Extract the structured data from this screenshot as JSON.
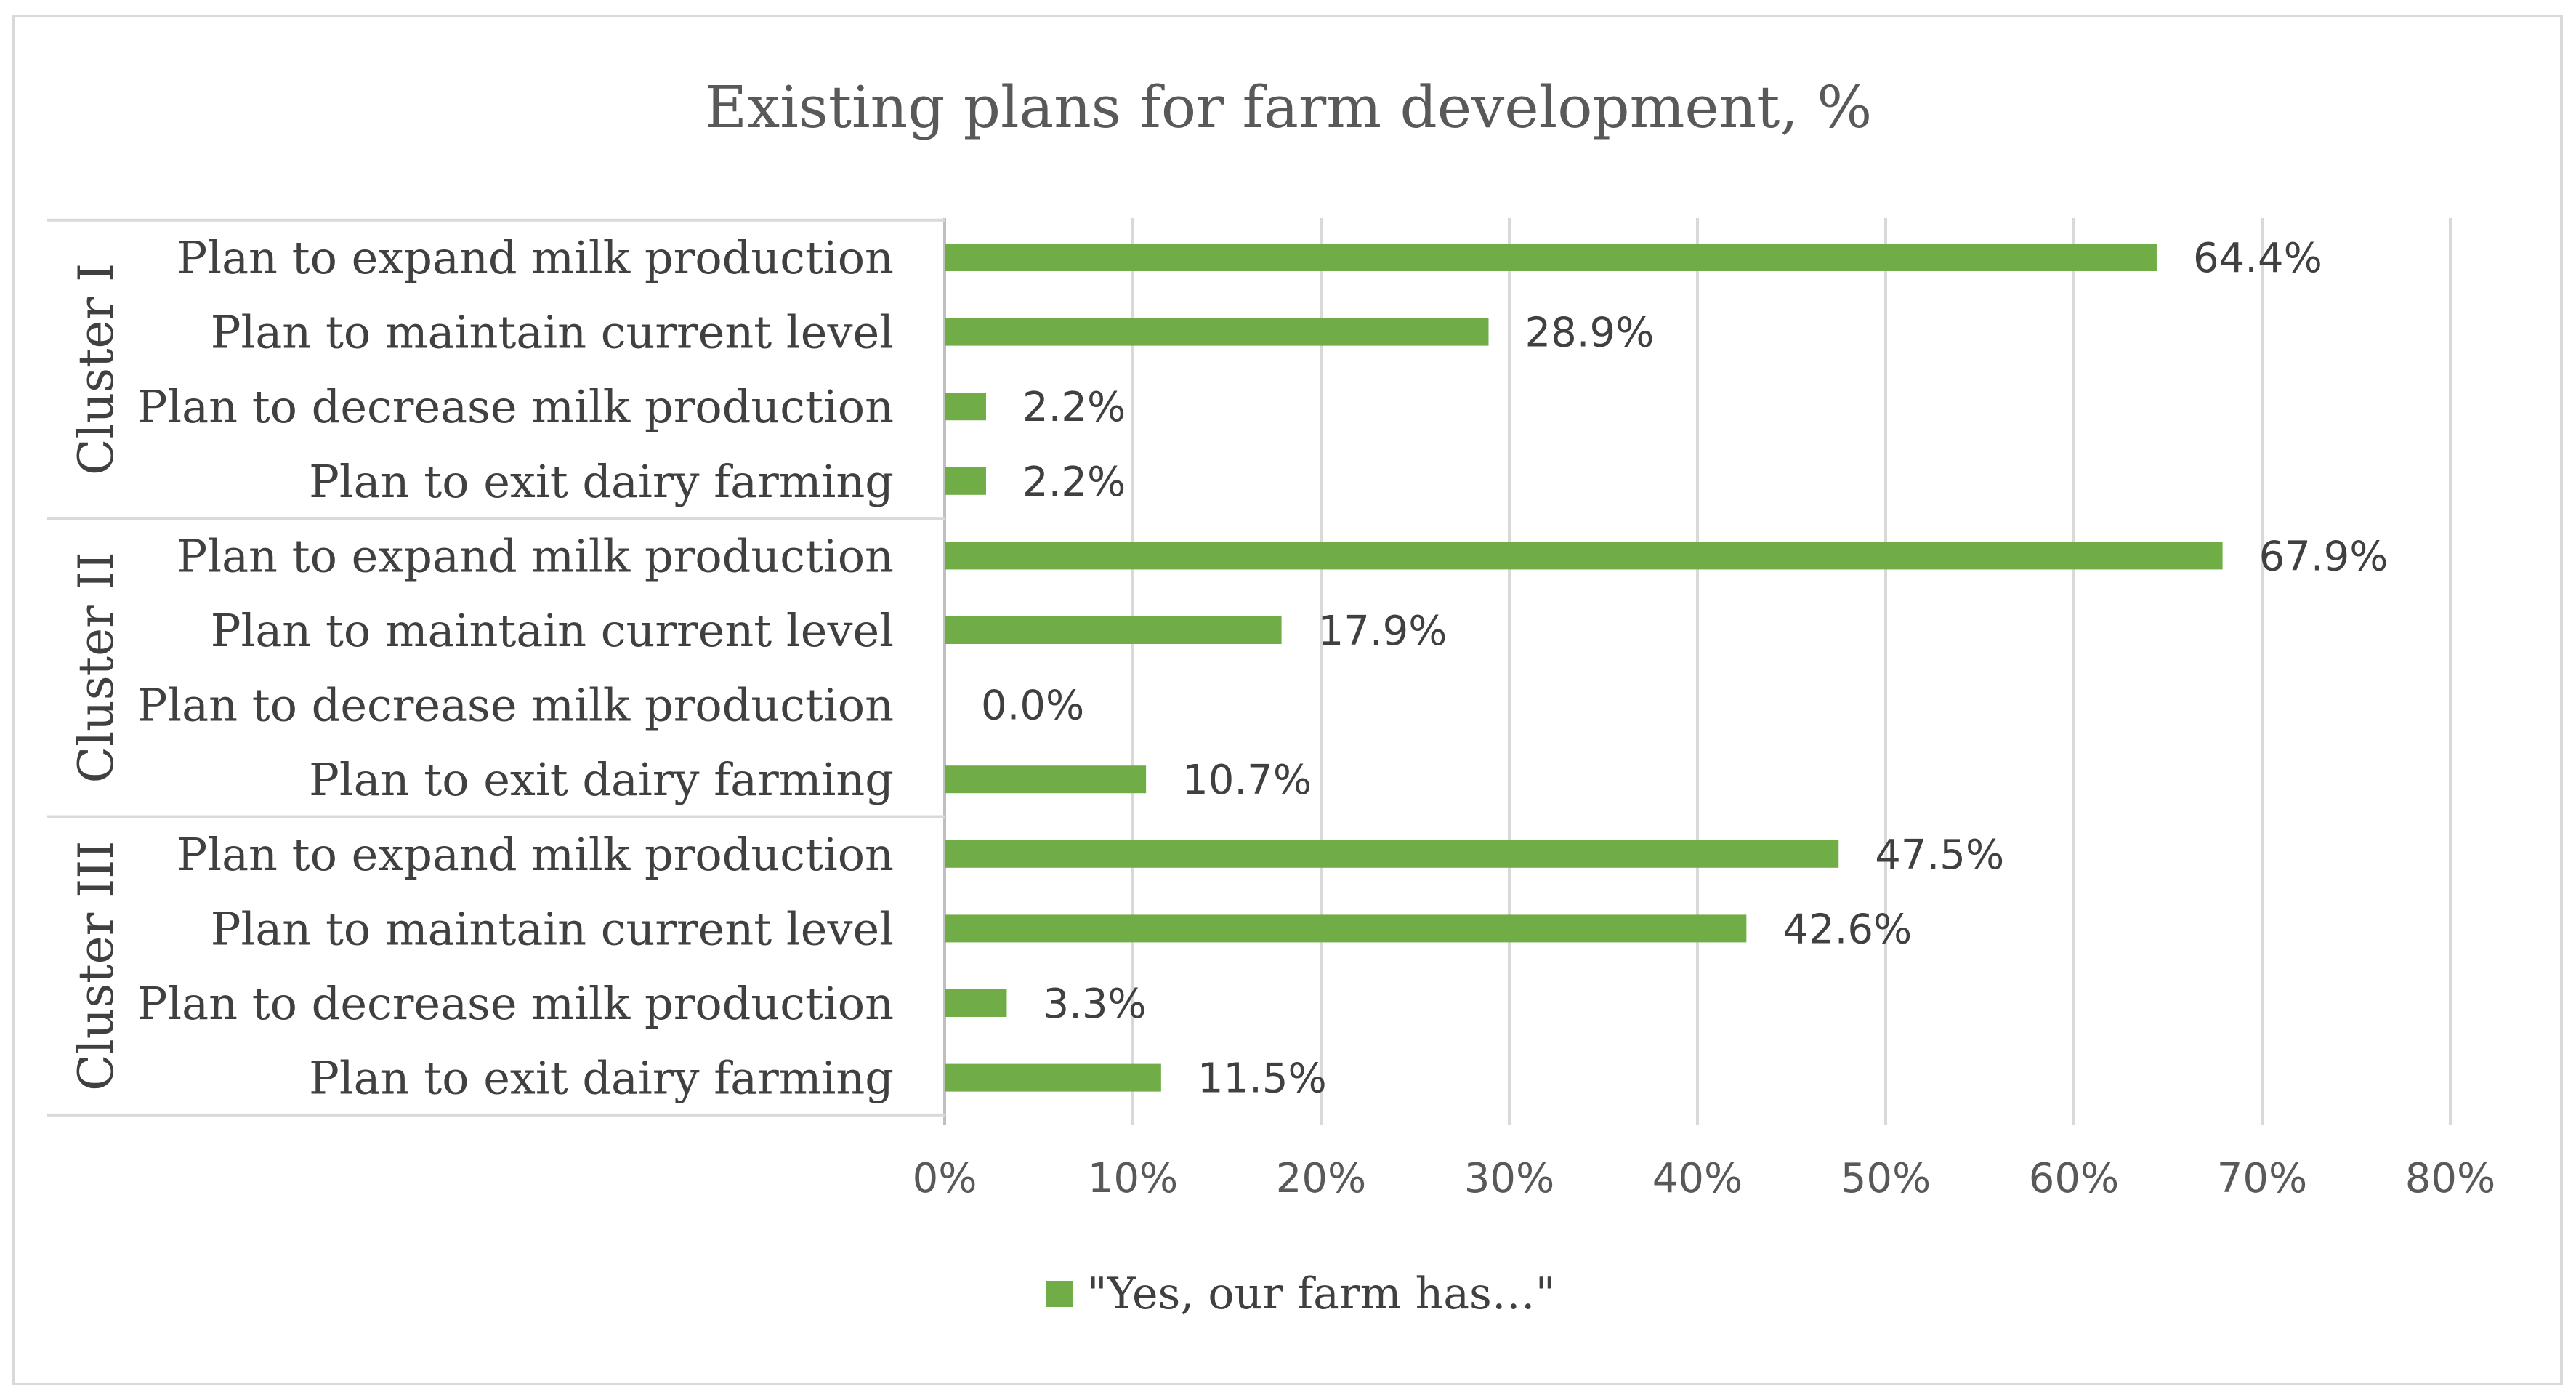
{
  "chart_data": {
    "type": "bar",
    "orientation": "horizontal",
    "title": "Existing plans for farm development, %",
    "groups": [
      {
        "name": "Cluster I",
        "categories": [
          "Plan to expand milk production",
          "Plan to maintain current level",
          "Plan to decrease milk production",
          "Plan to exit dairy farming"
        ],
        "values": [
          64.4,
          28.9,
          2.2,
          2.2
        ],
        "labels": [
          "64.4%",
          "28.9%",
          "2.2%",
          "2.2%"
        ]
      },
      {
        "name": "Cluster II",
        "categories": [
          "Plan to expand milk production",
          "Plan to maintain current level",
          "Plan to decrease milk production",
          "Plan to exit dairy farming"
        ],
        "values": [
          67.9,
          17.9,
          0.0,
          10.7
        ],
        "labels": [
          "67.9%",
          "17.9%",
          "0.0%",
          "10.7%"
        ]
      },
      {
        "name": "Cluster III",
        "categories": [
          "Plan to expand milk production",
          "Plan to maintain current level",
          "Plan to decrease milk production",
          "Plan to exit dairy farming"
        ],
        "values": [
          47.5,
          42.6,
          3.3,
          11.5
        ],
        "labels": [
          "47.5%",
          "42.6%",
          "3.3%",
          "11.5%"
        ]
      }
    ],
    "series": [
      {
        "name": "\"Yes, our farm has…\"",
        "color": "#70ad47"
      }
    ],
    "xlim": [
      0,
      80
    ],
    "xticks": [
      0,
      10,
      20,
      30,
      40,
      50,
      60,
      70,
      80
    ],
    "xtick_labels": [
      "0%",
      "10%",
      "20%",
      "30%",
      "40%",
      "50%",
      "60%",
      "70%",
      "80%"
    ],
    "grid": true,
    "legend_position": "bottom",
    "colors": {
      "bar": "#70ad47",
      "grid": "#d9d9d9",
      "border": "#d9d9d9"
    }
  }
}
